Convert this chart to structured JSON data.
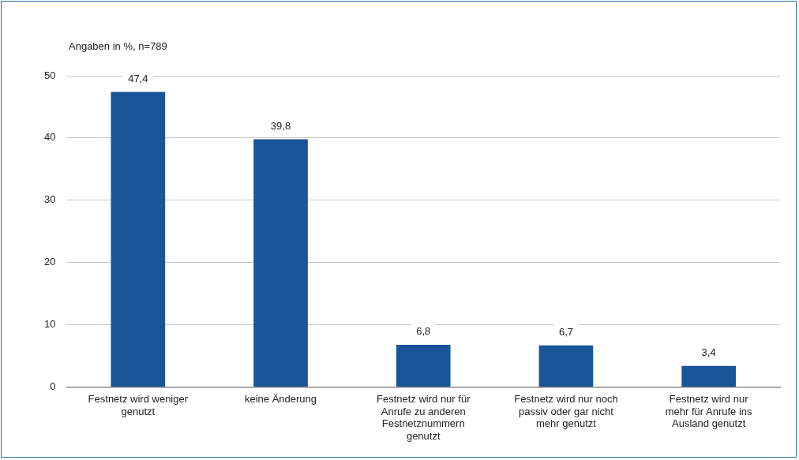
{
  "chart_data": {
    "type": "bar",
    "ylabel": "Angaben in %, n=789",
    "categories": [
      "Festnetz wird weniger genutzt",
      "keine Änderung",
      "Festnetz wird nur für Anrufe zu anderen Festnetznummern genutzt",
      "Festnetz wird nur noch passiv oder gar nicht mehr genutzt",
      "Festnetz wird nur mehr für Anrufe ins Ausland genutzt"
    ],
    "values": [
      47.4,
      39.8,
      6.8,
      6.7,
      3.4
    ],
    "value_labels": [
      "47,4",
      "39,8",
      "6,8",
      "6,7",
      "3,4"
    ],
    "color": "#1a5499",
    "ylim": [
      0,
      50
    ],
    "yticks": [
      0,
      10,
      20,
      30,
      40,
      50
    ],
    "grid": "y",
    "legend": false
  }
}
